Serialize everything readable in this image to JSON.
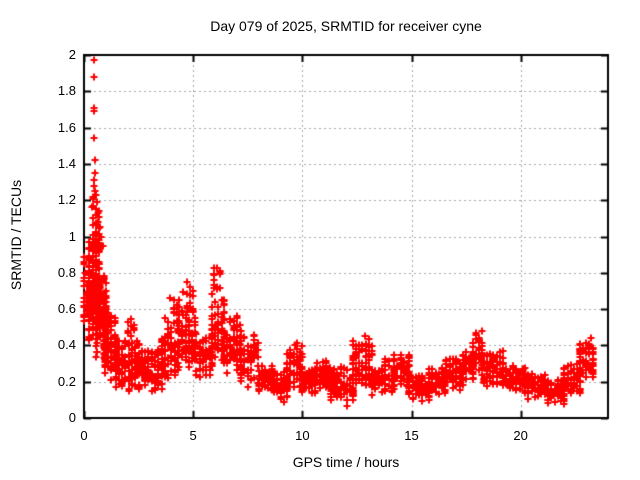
{
  "page": {
    "background": "#ffffff"
  },
  "chart_data": {
    "type": "scatter",
    "title": "Day 079 of 2025, SRMTID for receiver cyne",
    "xlabel": "GPS time / hours",
    "ylabel": "SRMTID / TECUs",
    "xlim": [
      0,
      24
    ],
    "ylim": [
      0,
      2
    ],
    "grid": true,
    "legend": false,
    "x_ticks": [
      {
        "v": 0,
        "label": "0"
      },
      {
        "v": 5,
        "label": "5"
      },
      {
        "v": 10,
        "label": "10"
      },
      {
        "v": 15,
        "label": "15"
      },
      {
        "v": 20,
        "label": "20"
      }
    ],
    "y_ticks": [
      {
        "v": 0,
        "label": "0"
      },
      {
        "v": 0.2,
        "label": "0.2"
      },
      {
        "v": 0.4,
        "label": "0.4"
      },
      {
        "v": 0.6,
        "label": "0.6"
      },
      {
        "v": 0.8,
        "label": "0.8"
      },
      {
        "v": 1,
        "label": "1"
      },
      {
        "v": 1.2,
        "label": "1.2"
      },
      {
        "v": 1.4,
        "label": "1.4"
      },
      {
        "v": 1.6,
        "label": "1.6"
      },
      {
        "v": 1.8,
        "label": "1.8"
      },
      {
        "v": 2,
        "label": "2"
      }
    ],
    "marker": {
      "shape": "plus",
      "color": "#ff0000",
      "size": 7,
      "line_width": 2
    },
    "colors": {
      "grid": "#a8a8a8",
      "axis": "#000000",
      "text": "#000000"
    },
    "seed": 79,
    "epoch_step_hours": 0.15,
    "outlier_points": [
      [
        0.46,
        1.97
      ],
      [
        0.47,
        1.88
      ],
      [
        0.45,
        1.71
      ],
      [
        0.48,
        1.69
      ],
      [
        0.47,
        1.54
      ],
      [
        0.5,
        1.42
      ],
      [
        0.46,
        1.31
      ],
      [
        0.44,
        1.28
      ],
      [
        0.52,
        1.25
      ],
      [
        0.55,
        1.23
      ],
      [
        0.42,
        1.22
      ],
      [
        0.58,
        1.19
      ],
      [
        0.36,
        1.16
      ],
      [
        0.62,
        1.13
      ],
      [
        0.5,
        1.35
      ],
      [
        0.66,
        1.08
      ],
      [
        0.4,
        1.1
      ],
      [
        0.72,
        1.05
      ],
      [
        0.8,
        1.0
      ],
      [
        0.88,
        0.95
      ],
      [
        0.02,
        0.85
      ],
      [
        0.04,
        0.8
      ],
      [
        3.7,
        0.55
      ],
      [
        7.0,
        0.55
      ],
      [
        9.65,
        0.4
      ],
      [
        12.85,
        0.45
      ],
      [
        17.95,
        0.47
      ],
      [
        23.2,
        0.44
      ]
    ],
    "density_strips": [
      [
        0.0,
        0.25,
        0.45,
        0.92,
        28
      ],
      [
        0.25,
        0.6,
        0.32,
        1.05,
        150
      ],
      [
        0.4,
        0.72,
        0.55,
        1.25,
        80
      ],
      [
        0.6,
        1.0,
        0.28,
        0.85,
        90
      ],
      [
        0.95,
        1.45,
        0.2,
        0.62,
        85
      ],
      [
        1.45,
        2.5,
        0.14,
        0.45,
        125
      ],
      [
        2.0,
        2.45,
        0.4,
        0.56,
        10
      ],
      [
        2.5,
        3.55,
        0.13,
        0.4,
        120
      ],
      [
        3.55,
        4.35,
        0.18,
        0.55,
        80
      ],
      [
        3.95,
        4.35,
        0.45,
        0.7,
        20
      ],
      [
        4.35,
        5.15,
        0.25,
        0.62,
        85
      ],
      [
        4.55,
        5.05,
        0.55,
        0.75,
        16
      ],
      [
        5.15,
        5.85,
        0.2,
        0.5,
        70
      ],
      [
        5.85,
        6.4,
        0.28,
        0.7,
        55
      ],
      [
        5.95,
        6.3,
        0.65,
        0.88,
        14
      ],
      [
        6.4,
        7.2,
        0.2,
        0.6,
        75
      ],
      [
        7.2,
        8.0,
        0.14,
        0.5,
        70
      ],
      [
        8.0,
        8.7,
        0.12,
        0.33,
        65
      ],
      [
        8.7,
        9.3,
        0.08,
        0.28,
        60
      ],
      [
        9.3,
        10.0,
        0.14,
        0.42,
        65
      ],
      [
        10.0,
        10.65,
        0.12,
        0.28,
        62
      ],
      [
        10.65,
        11.3,
        0.14,
        0.33,
        60
      ],
      [
        11.3,
        12.3,
        0.06,
        0.3,
        95
      ],
      [
        12.3,
        13.2,
        0.15,
        0.45,
        85
      ],
      [
        13.2,
        14.2,
        0.12,
        0.33,
        90
      ],
      [
        14.2,
        14.9,
        0.15,
        0.38,
        65
      ],
      [
        14.9,
        15.8,
        0.08,
        0.25,
        80
      ],
      [
        15.8,
        16.6,
        0.12,
        0.3,
        70
      ],
      [
        16.6,
        17.35,
        0.14,
        0.34,
        65
      ],
      [
        17.35,
        17.8,
        0.18,
        0.38,
        45
      ],
      [
        17.8,
        18.3,
        0.22,
        0.48,
        45
      ],
      [
        18.3,
        19.2,
        0.16,
        0.38,
        80
      ],
      [
        19.2,
        20.2,
        0.13,
        0.3,
        85
      ],
      [
        20.2,
        21.1,
        0.1,
        0.25,
        80
      ],
      [
        21.1,
        22.0,
        0.07,
        0.22,
        75
      ],
      [
        22.0,
        22.7,
        0.12,
        0.3,
        70
      ],
      [
        22.7,
        23.35,
        0.2,
        0.45,
        65
      ]
    ]
  }
}
